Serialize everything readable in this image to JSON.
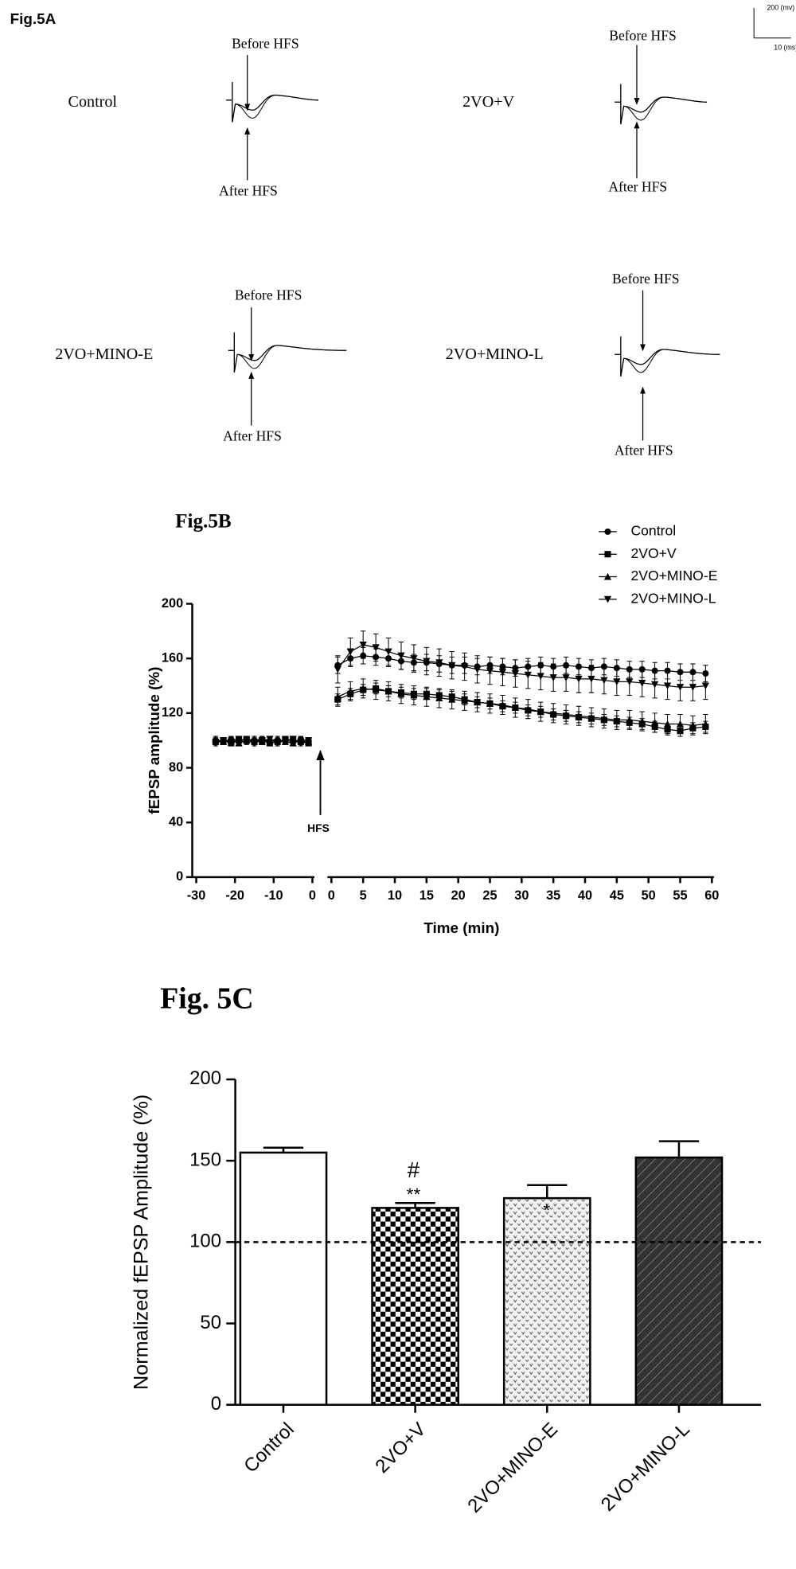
{
  "fig5a": {
    "title": "Fig.5A",
    "scale_bar": {
      "y_label": "200 (mv)",
      "x_label": "10 (ms)"
    },
    "panels": [
      {
        "label": "Control",
        "before": "Before HFS",
        "after": "After HFS"
      },
      {
        "label": "2VO+V",
        "before": "Before HFS",
        "after": "After HFS"
      },
      {
        "label": "2VO+MINO-E",
        "before": "Before HFS",
        "after": "After HFS"
      },
      {
        "label": "2VO+MINO-L",
        "before": "Before HFS",
        "after": "After HFS"
      }
    ]
  },
  "chart_data": [
    {
      "type": "line",
      "title": "Fig.5B",
      "xlabel": "Time (min)",
      "ylabel": "fEPSP amplitude (%)",
      "annotation": "HFS",
      "ylim": [
        0,
        200
      ],
      "yticks": [
        0,
        40,
        80,
        120,
        160,
        200
      ],
      "x_segments": [
        {
          "xlim": [
            -30,
            0
          ],
          "xticks": [
            -30,
            -20,
            -10,
            0
          ]
        },
        {
          "xlim": [
            0,
            60
          ],
          "xticks": [
            0,
            5,
            10,
            15,
            20,
            25,
            30,
            35,
            40,
            45,
            50,
            55,
            60
          ]
        }
      ],
      "legend": "upper right",
      "x": [
        -25,
        -23,
        -21,
        -19,
        -17,
        -15,
        -13,
        -11,
        -9,
        -7,
        -5,
        -3,
        -1,
        1,
        3,
        5,
        7,
        9,
        11,
        13,
        15,
        17,
        19,
        21,
        23,
        25,
        27,
        29,
        31,
        33,
        35,
        37,
        39,
        41,
        43,
        45,
        47,
        49,
        51,
        53,
        55,
        57,
        59
      ],
      "series": [
        {
          "name": "Control",
          "color": "#000000",
          "marker": "circle",
          "values": [
            100,
            99,
            101,
            100,
            99,
            100,
            101,
            99,
            100,
            100,
            99,
            101,
            100,
            155,
            160,
            162,
            161,
            160,
            158,
            157,
            157,
            156,
            155,
            155,
            154,
            155,
            154,
            153,
            154,
            155,
            154,
            155,
            154,
            153,
            154,
            153,
            152,
            152,
            151,
            151,
            150,
            150,
            149
          ],
          "errors": [
            2,
            2,
            2,
            2,
            2,
            2,
            2,
            2,
            2,
            2,
            2,
            2,
            2,
            6,
            6,
            6,
            6,
            6,
            6,
            6,
            6,
            6,
            6,
            6,
            6,
            6,
            6,
            6,
            6,
            6,
            6,
            6,
            6,
            6,
            6,
            6,
            6,
            6,
            6,
            6,
            6,
            6,
            6
          ]
        },
        {
          "name": "2VO+V",
          "color": "#000000",
          "marker": "square",
          "values": [
            99,
            100,
            98,
            100,
            101,
            99,
            100,
            98,
            99,
            101,
            100,
            99,
            98,
            130,
            134,
            137,
            138,
            136,
            135,
            134,
            134,
            133,
            132,
            130,
            128,
            127,
            125,
            124,
            122,
            121,
            119,
            118,
            117,
            116,
            115,
            114,
            113,
            112,
            110,
            108,
            107,
            109,
            110
          ],
          "errors": [
            2,
            2,
            2,
            2,
            2,
            2,
            2,
            2,
            2,
            2,
            2,
            2,
            2,
            4,
            4,
            4,
            4,
            4,
            4,
            4,
            4,
            4,
            4,
            4,
            4,
            4,
            4,
            4,
            4,
            4,
            4,
            4,
            4,
            4,
            4,
            4,
            4,
            4,
            4,
            4,
            4,
            4,
            4
          ]
        },
        {
          "name": "2VO+MINO-E",
          "color": "#000000",
          "marker": "triangle-up",
          "values": [
            101,
            99,
            100,
            98,
            100,
            101,
            99,
            100,
            101,
            99,
            98,
            100,
            99,
            132,
            136,
            138,
            137,
            136,
            134,
            133,
            132,
            131,
            130,
            129,
            128,
            127,
            126,
            124,
            123,
            121,
            120,
            119,
            118,
            117,
            116,
            115,
            115,
            114,
            113,
            112,
            112,
            111,
            112
          ],
          "errors": [
            2,
            2,
            2,
            2,
            2,
            2,
            2,
            2,
            2,
            2,
            2,
            2,
            2,
            7,
            7,
            7,
            7,
            7,
            7,
            7,
            7,
            7,
            7,
            7,
            7,
            7,
            7,
            7,
            7,
            7,
            7,
            7,
            7,
            7,
            7,
            7,
            7,
            7,
            7,
            7,
            7,
            7,
            7
          ]
        },
        {
          "name": "2VO+MINO-L",
          "color": "#000000",
          "marker": "triangle-down",
          "values": [
            98,
            100,
            99,
            101,
            100,
            98,
            100,
            101,
            98,
            100,
            101,
            98,
            100,
            152,
            165,
            170,
            168,
            165,
            162,
            160,
            158,
            157,
            155,
            154,
            152,
            151,
            150,
            149,
            148,
            147,
            146,
            146,
            145,
            145,
            144,
            143,
            143,
            142,
            141,
            140,
            139,
            139,
            140
          ],
          "errors": [
            2,
            2,
            2,
            2,
            2,
            2,
            2,
            2,
            2,
            2,
            2,
            2,
            2,
            10,
            10,
            10,
            10,
            10,
            10,
            10,
            10,
            10,
            10,
            10,
            10,
            10,
            10,
            10,
            10,
            10,
            10,
            10,
            10,
            10,
            10,
            10,
            10,
            10,
            10,
            10,
            10,
            10,
            10
          ]
        }
      ]
    },
    {
      "type": "bar",
      "title": "Fig. 5C",
      "ylabel": "Normalized fEPSP Amplitude (%)",
      "categories": [
        "Control",
        "2VO+V",
        "2VO+MINO-E",
        "2VO+MINO-L"
      ],
      "values": [
        155,
        121,
        127,
        152
      ],
      "errors": [
        3,
        3,
        8,
        10
      ],
      "patterns": [
        "none",
        "checkerboard",
        "dots",
        "hatch"
      ],
      "color": "#000000",
      "ylim": [
        0,
        200
      ],
      "yticks": [
        0,
        50,
        100,
        150,
        200
      ],
      "reference_line": 100,
      "annotations": [
        "#",
        "**",
        "*"
      ]
    }
  ]
}
